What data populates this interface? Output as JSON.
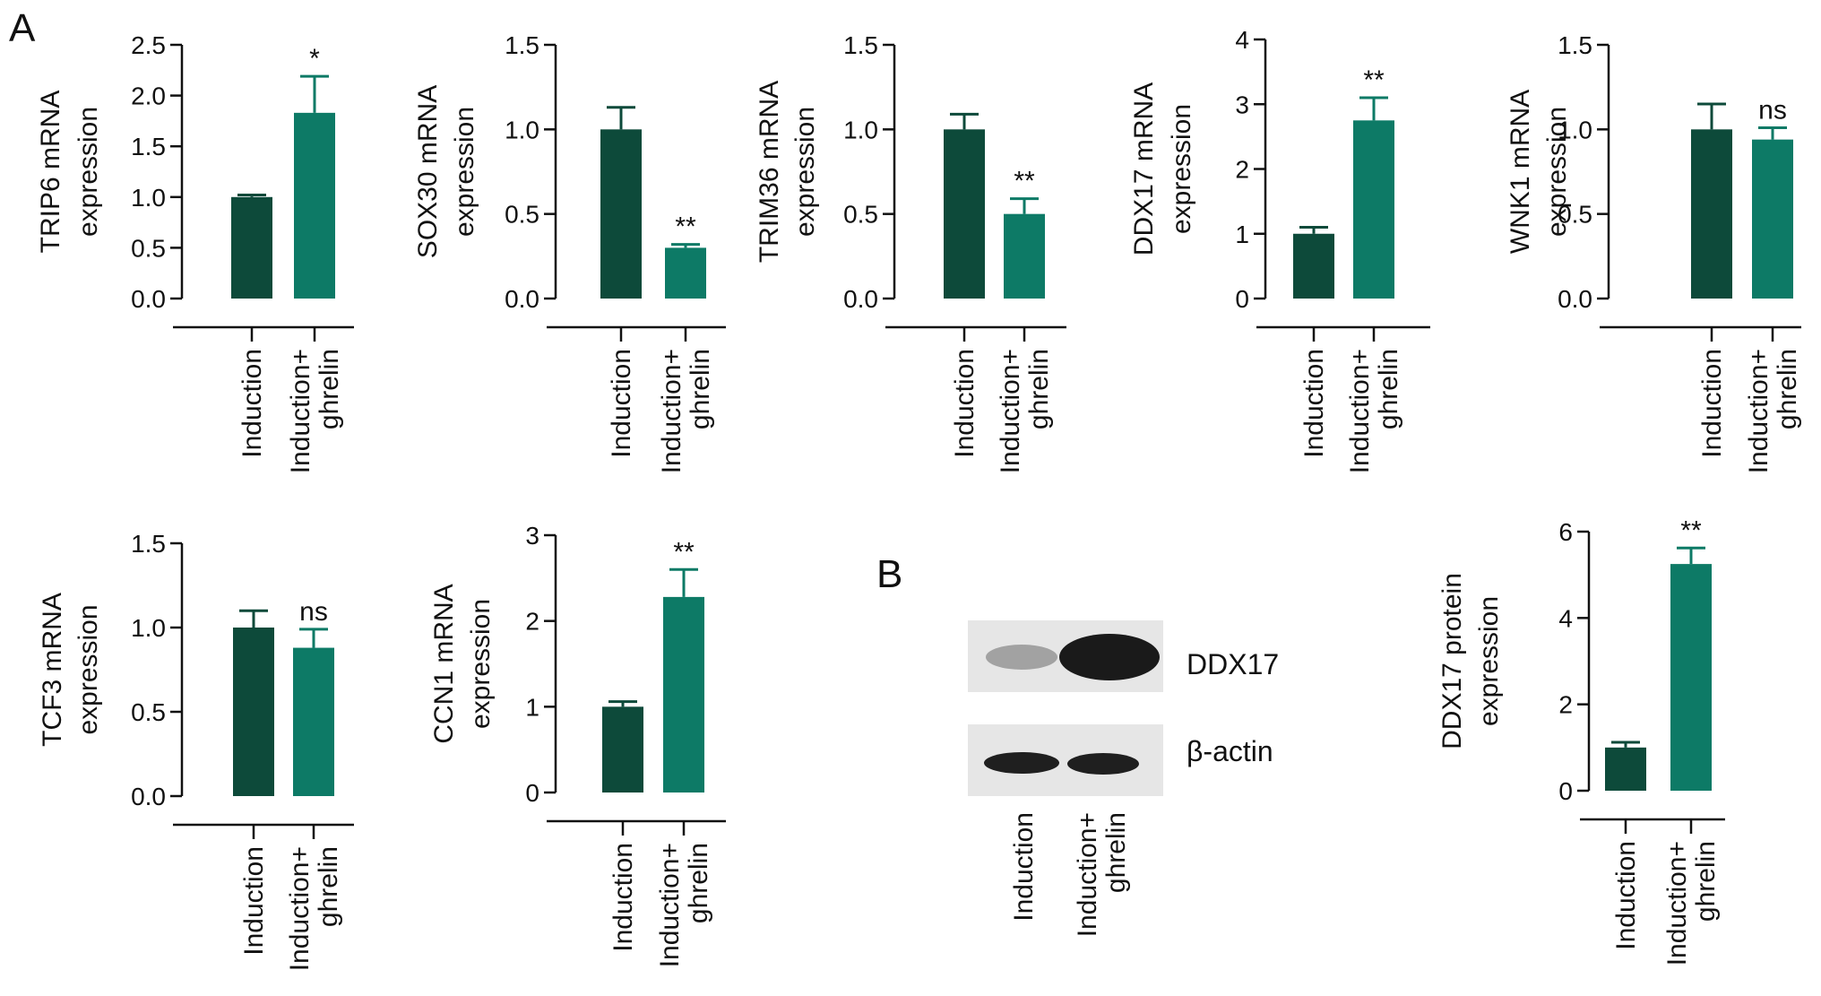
{
  "figure": {
    "panel_a_label": "A",
    "panel_b_label": "B",
    "western_blot": {
      "bands": [
        "DDX17",
        "β-actin"
      ],
      "lanes": [
        "Induction",
        "Induction+ ghrelin"
      ]
    }
  },
  "colors": {
    "induction": "#0d4a3a",
    "induction_ghrelin": "#0d7a66",
    "axis": "#111111"
  },
  "chart_data": [
    {
      "type": "bar",
      "categories": [
        "Induction",
        "Induction+ ghrelin"
      ],
      "values": [
        1.0,
        1.83
      ],
      "errors": [
        0.02,
        0.36
      ],
      "annotations": [
        "",
        "*"
      ],
      "ylabel": "TRIP6 mRNA expression",
      "ylim": [
        0,
        2.5
      ],
      "yticks": [
        "0.0",
        "0.5",
        "1.0",
        "1.5",
        "2.0",
        "2.5"
      ]
    },
    {
      "type": "bar",
      "categories": [
        "Induction",
        "Induction+ ghrelin"
      ],
      "values": [
        1.0,
        0.3
      ],
      "errors": [
        0.13,
        0.02
      ],
      "annotations": [
        "",
        "**"
      ],
      "ylabel": "SOX30 mRNA expression",
      "ylim": [
        0,
        1.5
      ],
      "yticks": [
        "0.0",
        "0.5",
        "1.0",
        "1.5"
      ]
    },
    {
      "type": "bar",
      "categories": [
        "Induction",
        "Induction+ ghrelin"
      ],
      "values": [
        1.0,
        0.5
      ],
      "errors": [
        0.09,
        0.09
      ],
      "annotations": [
        "",
        "**"
      ],
      "ylabel": "TRIM36 mRNA expression",
      "ylim": [
        0,
        1.5
      ],
      "yticks": [
        "0.0",
        "0.5",
        "1.0",
        "1.5"
      ]
    },
    {
      "type": "bar",
      "categories": [
        "Induction",
        "Induction+ ghrelin"
      ],
      "values": [
        1.0,
        2.75
      ],
      "errors": [
        0.1,
        0.35
      ],
      "annotations": [
        "",
        "**"
      ],
      "ylabel": "DDX17 mRNA expression",
      "ylim": [
        0,
        4
      ],
      "yticks": [
        "0",
        "1",
        "2",
        "3",
        "4"
      ]
    },
    {
      "type": "bar",
      "categories": [
        "Induction",
        "Induction+ ghrelin"
      ],
      "values": [
        1.0,
        0.94
      ],
      "errors": [
        0.15,
        0.07
      ],
      "annotations": [
        "",
        "ns"
      ],
      "ylabel": "WNK1 mRNA expression",
      "ylim": [
        0,
        1.5
      ],
      "yticks": [
        "0.0",
        "0.5",
        "1.0",
        "1.5"
      ]
    },
    {
      "type": "bar",
      "categories": [
        "Induction",
        "Induction+ ghrelin"
      ],
      "values": [
        1.0,
        0.88
      ],
      "errors": [
        0.1,
        0.11
      ],
      "annotations": [
        "",
        "ns"
      ],
      "ylabel": "TCF3 mRNA expression",
      "ylim": [
        0,
        1.5
      ],
      "yticks": [
        "0.0",
        "0.5",
        "1.0",
        "1.5"
      ]
    },
    {
      "type": "bar",
      "categories": [
        "Induction",
        "Induction+ ghrelin"
      ],
      "values": [
        1.0,
        2.28
      ],
      "errors": [
        0.06,
        0.32
      ],
      "annotations": [
        "",
        "**"
      ],
      "ylabel": "CCN1 mRNA expression",
      "ylim": [
        0,
        3
      ],
      "yticks": [
        "0",
        "1",
        "2",
        "3"
      ]
    },
    {
      "type": "bar",
      "categories": [
        "Induction",
        "Induction+ ghrelin"
      ],
      "values": [
        1.0,
        5.25
      ],
      "errors": [
        0.12,
        0.37
      ],
      "annotations": [
        "",
        "**"
      ],
      "ylabel": "DDX17 protein expression",
      "ylim": [
        0,
        6
      ],
      "yticks": [
        "0",
        "2",
        "4",
        "6"
      ]
    }
  ]
}
